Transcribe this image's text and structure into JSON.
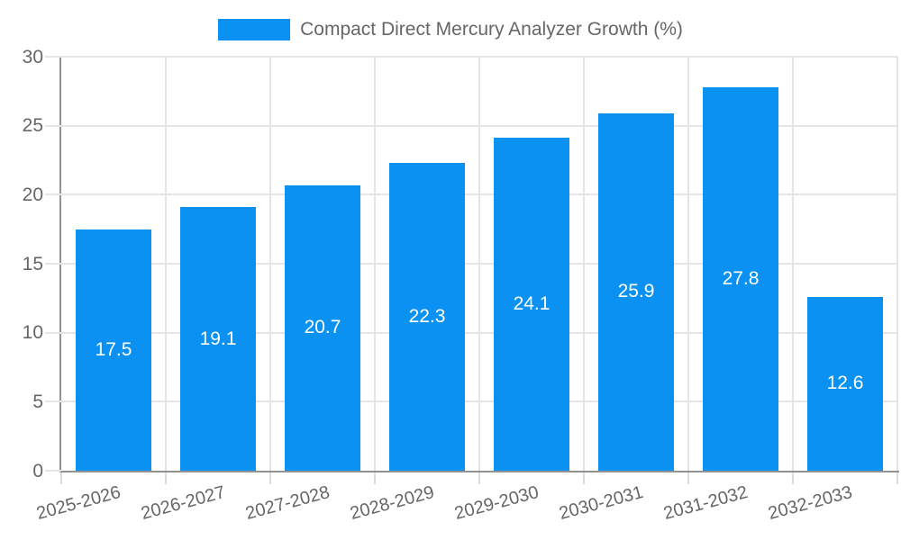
{
  "legend": {
    "label": "Compact Direct Mercury Analyzer Growth (%)"
  },
  "chart_data": {
    "type": "bar",
    "title": "Compact Direct Mercury Analyzer Growth (%)",
    "categories": [
      "2025-2026",
      "2026-2027",
      "2027-2028",
      "2028-2029",
      "2029-2030",
      "2030-2031",
      "2031-2032",
      "2032-2033"
    ],
    "values": [
      17.5,
      19.1,
      20.7,
      22.3,
      24.1,
      25.9,
      27.8,
      12.6
    ],
    "series_name": "Compact Direct Mercury Analyzer Growth (%)",
    "xlabel": "",
    "ylabel": "",
    "ylim": [
      0,
      30
    ],
    "yticks": [
      0,
      5,
      10,
      15,
      20,
      25,
      30
    ],
    "grid": true,
    "legend_position": "top-center",
    "x_tick_rotation_deg": -15,
    "value_labels": "inside-center",
    "colors": {
      "bar": "#0a91f2",
      "value_text": "#ffffff",
      "tick_text": "#666666",
      "grid": "#e5e5e5",
      "axis": "#929292",
      "background": "#ffffff"
    }
  }
}
